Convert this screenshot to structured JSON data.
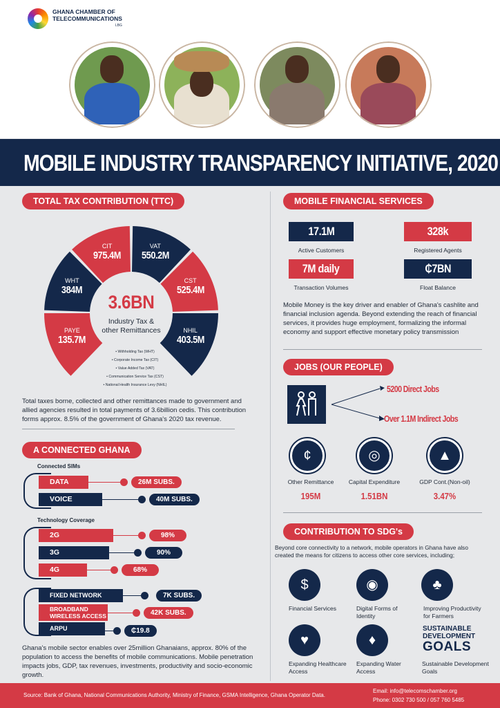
{
  "header": {
    "org_line1": "GHANA CHAMBER OF",
    "org_line2": "TELECOMMUNICATIONS",
    "org_suffix": "LBG",
    "title": "MOBILE INDUSTRY TRANSPARENCY INITIATIVE, 2020"
  },
  "ttc": {
    "heading": "TOTAL TAX CONTRIBUTION (TTC)",
    "center_value": "3.6BN",
    "center_line1": "Industry Tax &",
    "center_line2": "other Remittances",
    "segments": [
      {
        "key": "CIT",
        "value": "975.4M",
        "color": "#d43a45"
      },
      {
        "key": "VAT",
        "value": "550.2M",
        "color": "#14284a"
      },
      {
        "key": "CST",
        "value": "525.4M",
        "color": "#d43a45"
      },
      {
        "key": "NHIL",
        "value": "403.5M",
        "color": "#14284a"
      },
      {
        "key": "PAYE",
        "value": "135.7M",
        "color": "#d43a45"
      },
      {
        "key": "WHT",
        "value": "384M",
        "color": "#14284a"
      }
    ],
    "legend": [
      "• Withholding Tax (WHT)",
      "• Corporate Income Tax (CIT)",
      "• Value Added Tax (VAT)",
      "• Communication Service Tax (CST)",
      "• National Health Insurance Levy (NHIL)"
    ],
    "description": "Total taxes borne, collected and other remittances made to government and allied agencies resulted in total payments of 3.6billion cedis. This contribution forms approx. 8.5% of the government of Ghana's 2020 tax revenue."
  },
  "connected": {
    "heading": "A CONNECTED GHANA",
    "sims_label": "Connected SIMs",
    "data_label": "DATA",
    "data_value": "26M SUBS.",
    "voice_label": "VOICE",
    "voice_value": "40M SUBS.",
    "coverage_label": "Technology Coverage",
    "g2_label": "2G",
    "g2_value": "98%",
    "g3_label": "3G",
    "g3_value": "90%",
    "g4_label": "4G",
    "g4_value": "68%",
    "fixed_label": "FIXED NETWORK",
    "fixed_value": "7K SUBS.",
    "bwa_label1": "BROADBAND",
    "bwa_label2": "WIRELESS ACCESS",
    "bwa_value": "42K SUBS.",
    "arpu_label": "ARPU",
    "arpu_value": "₵19.8",
    "description": "Ghana's mobile sector enables over 25million Ghanaians, approx. 80% of the population to access the benefits of mobile communications. Mobile penetration impacts jobs, GDP, tax revenues, investments, productivity and socio-economic growth."
  },
  "mfs": {
    "heading": "MOBILE FINANCIAL SERVICES",
    "active_value": "17.1M",
    "active_label": "Active Customers",
    "agents_value": "328k",
    "agents_label": "Registered Agents",
    "volume_value": "7M daily",
    "volume_label": "Transaction Volumes",
    "float_value": "₵7BN",
    "float_label": "Float Balance",
    "description": "Mobile Money is the key driver and enabler of Ghana's cashlite and financial inclusion agenda. Beyond extending the reach of financial services, it provides huge employment, formalizing the informal economy and support effective monetary policy transmission"
  },
  "jobs": {
    "heading": "JOBS (OUR PEOPLE)",
    "direct": "5200 Direct Jobs",
    "indirect": "Over 1.1M Indirect Jobs",
    "stats": [
      {
        "label": "Other Remittance",
        "value": "195M"
      },
      {
        "label": "Capital Expenditure",
        "value": "1.51BN"
      },
      {
        "label": "GDP Cont.(Non-oil)",
        "value": "3.47%"
      }
    ]
  },
  "sdg": {
    "heading": "CONTRIBUTION TO SDG's",
    "intro": "Beyond core connectivity to a network, mobile operators in Ghana have also created the means for citizens to access other core services, including;",
    "items": [
      {
        "line1": "Financial Services",
        "line2": ""
      },
      {
        "line1": "Digital Forms of",
        "line2": "Identity"
      },
      {
        "line1": "Improving Productivity",
        "line2": "for Farmers"
      },
      {
        "line1": "Expanding Healthcare",
        "line2": "Access"
      },
      {
        "line1": "Expanding Water",
        "line2": "Access"
      },
      {
        "line1": "Sustainable Development",
        "line2": "Goals"
      }
    ],
    "logo_line1": "SUSTAINABLE",
    "logo_line2": "DEVELOPMENT",
    "logo_line3": "GOALS"
  },
  "footer": {
    "source": "Source: Bank of Ghana, National Communications Authority, Ministry of Finance, GSMA Intelligence, Ghana Operator Data.",
    "email": "Email: info@telecomschamber.org",
    "phone": "Phone: 0302 730 500 / 057 760 5485"
  }
}
